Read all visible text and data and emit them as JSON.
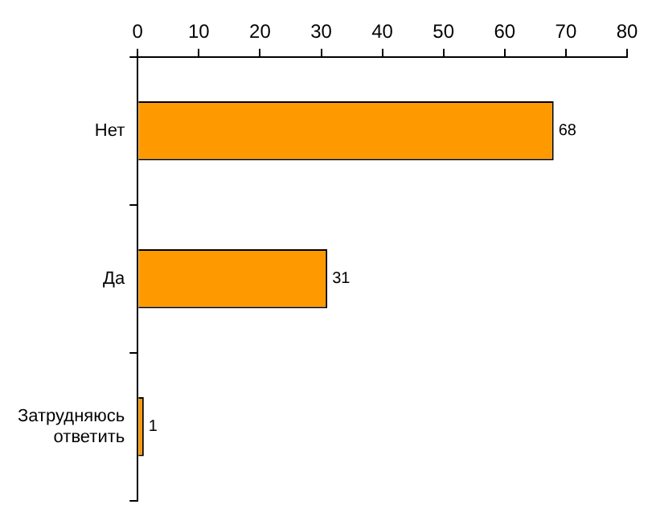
{
  "chart_data": {
    "type": "bar",
    "orientation": "horizontal",
    "categories": [
      "Нет",
      "Да",
      "Затрудняюсь ответить"
    ],
    "values": [
      68,
      31,
      1
    ],
    "color": "#ff9900",
    "xlim": [
      0,
      80
    ],
    "xticks": [
      0,
      10,
      20,
      30,
      40,
      50,
      60,
      70,
      80
    ],
    "grid": false,
    "legend": false,
    "data_labels": true
  }
}
